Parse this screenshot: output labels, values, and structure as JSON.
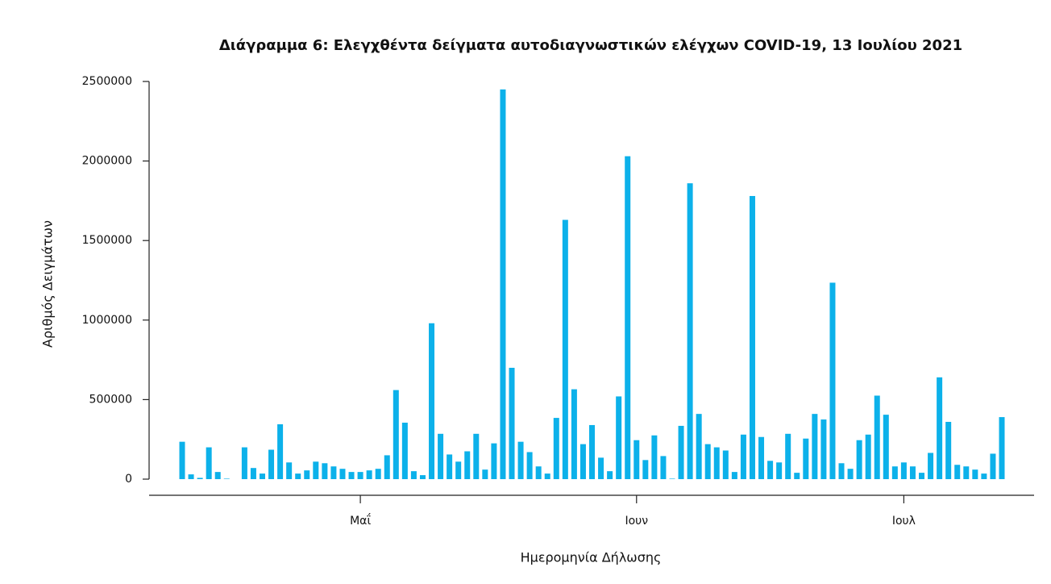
{
  "chart_data": {
    "type": "bar",
    "title": "Διάγραμμα 6: Ελεγχθέντα δείγματα αυτοδιαγνωστικών ελέγχων COVID-19, 13 Ιουλίου 2021",
    "x_label": "Ημερομηνία Δήλωσης",
    "y_label": "Αριθμός Δειγμάτων",
    "color": "#0cb1ea",
    "categories": [
      null,
      null,
      null,
      null,
      null,
      null,
      null,
      null,
      null,
      null,
      null,
      null,
      null,
      null,
      null,
      null,
      null,
      null,
      null,
      null,
      "Μαΐ",
      null,
      null,
      null,
      null,
      null,
      null,
      null,
      null,
      null,
      null,
      null,
      null,
      null,
      null,
      null,
      null,
      null,
      null,
      null,
      null,
      null,
      null,
      null,
      null,
      null,
      null,
      null,
      null,
      null,
      null,
      "Ιουν",
      null,
      null,
      null,
      null,
      null,
      null,
      null,
      null,
      null,
      null,
      null,
      null,
      null,
      null,
      null,
      null,
      null,
      null,
      null,
      null,
      null,
      null,
      null,
      null,
      null,
      null,
      null,
      null,
      null,
      "Ιουλ",
      null,
      null,
      null,
      null,
      null,
      null,
      null,
      null,
      null,
      null,
      null
    ],
    "values": [
      235000,
      30000,
      8000,
      200000,
      45000,
      3000,
      0,
      200000,
      70000,
      35000,
      185000,
      345000,
      105000,
      35000,
      55000,
      110000,
      100000,
      80000,
      65000,
      45000,
      45000,
      55000,
      65000,
      150000,
      560000,
      355000,
      50000,
      25000,
      980000,
      285000,
      155000,
      110000,
      175000,
      285000,
      60000,
      225000,
      2450000,
      700000,
      235000,
      170000,
      80000,
      35000,
      385000,
      1630000,
      565000,
      220000,
      340000,
      135000,
      50000,
      520000,
      2030000,
      245000,
      120000,
      275000,
      145000,
      3000,
      335000,
      1860000,
      410000,
      220000,
      200000,
      180000,
      45000,
      280000,
      1780000,
      265000,
      115000,
      105000,
      285000,
      40000,
      255000,
      410000,
      375000,
      1235000,
      100000,
      65000,
      245000,
      280000,
      525000,
      405000,
      80000,
      105000,
      80000,
      40000,
      165000,
      640000,
      360000,
      90000,
      80000,
      60000,
      35000,
      160000,
      390000
    ],
    "ylim": [
      0,
      2500000
    ],
    "yticks": [
      0,
      500000,
      1000000,
      1500000,
      2000000,
      2500000
    ]
  }
}
